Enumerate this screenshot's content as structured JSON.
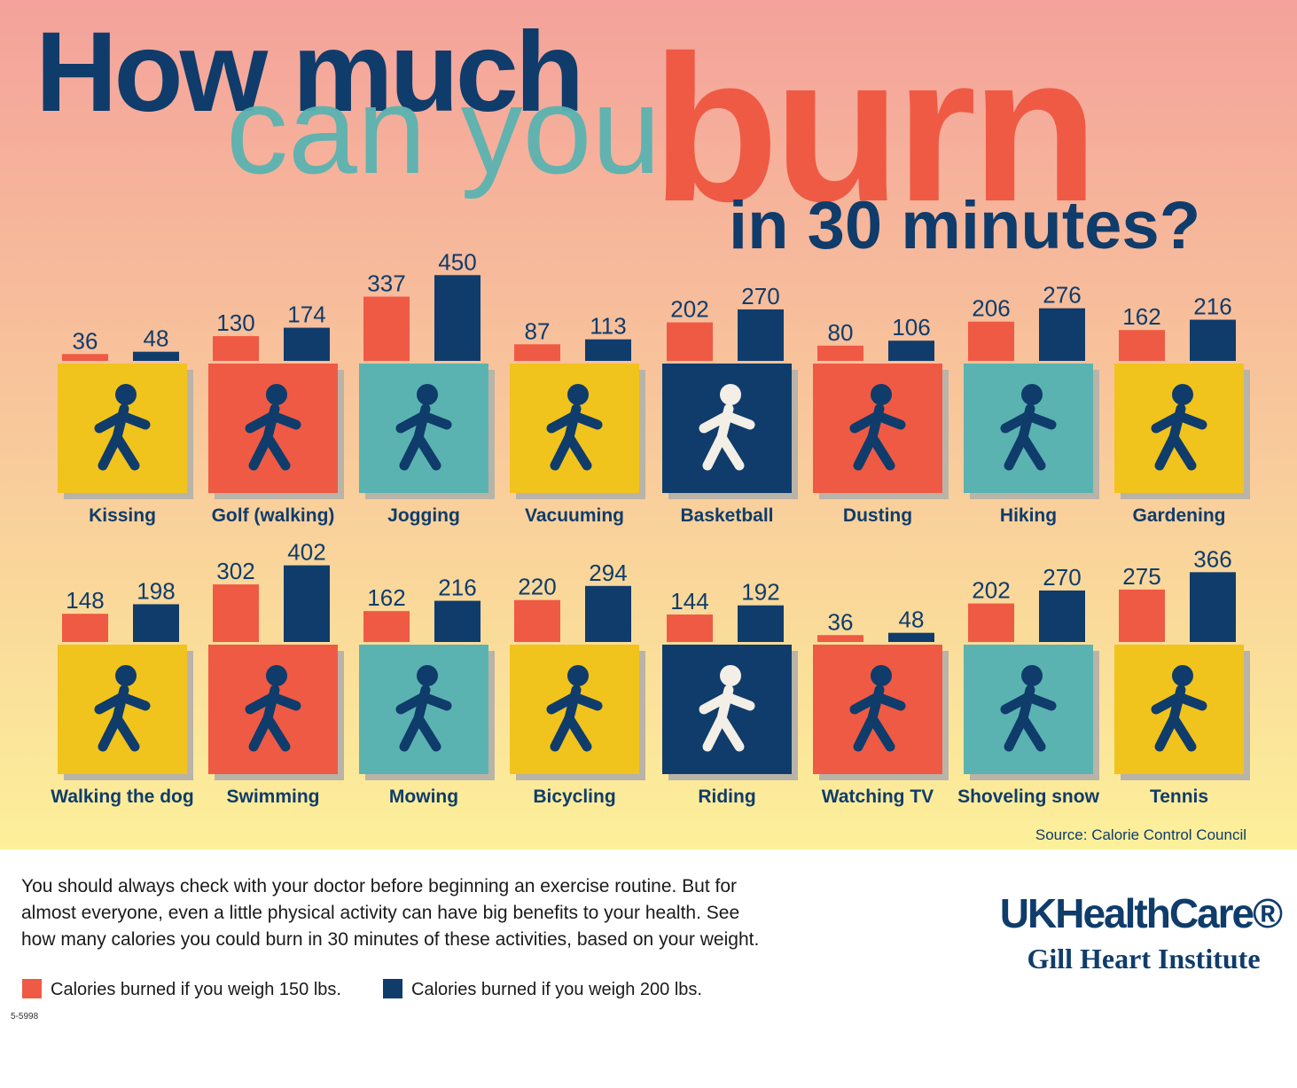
{
  "title": {
    "line1": "How much",
    "line2": "can you",
    "line3": "burn",
    "line4": "in 30 minutes?"
  },
  "chart_data": {
    "type": "bar",
    "categories": [
      "Kissing",
      "Golf (walking)",
      "Jogging",
      "Vacuuming",
      "Basketball",
      "Dusting",
      "Hiking",
      "Gardening",
      "Walking the dog",
      "Swimming",
      "Mowing",
      "Bicycling",
      "Riding",
      "Watching TV",
      "Shoveling snow",
      "Tennis"
    ],
    "series": [
      {
        "name": "Calories burned if you weigh 150 lbs.",
        "color": "#ef5a45",
        "values": [
          36,
          130,
          337,
          87,
          202,
          80,
          206,
          162,
          148,
          302,
          162,
          220,
          144,
          36,
          202,
          275
        ]
      },
      {
        "name": "Calories burned if you weigh 200 lbs.",
        "color": "#0f3c6b",
        "values": [
          48,
          174,
          450,
          113,
          270,
          106,
          276,
          216,
          198,
          402,
          216,
          294,
          192,
          48,
          270,
          366
        ]
      }
    ],
    "source": "Source: Calorie Control Council"
  },
  "note_lines": [
    "You should always check with your doctor before beginning an exercise routine. But for",
    "almost everyone, even a little physical activity can have big benefits to your health. See",
    "how many calories you could burn in 30 minutes of these activities, based on your weight."
  ],
  "brand": "UKHealthCare®",
  "institute": "Gill Heart Institute",
  "code": "5-5998"
}
